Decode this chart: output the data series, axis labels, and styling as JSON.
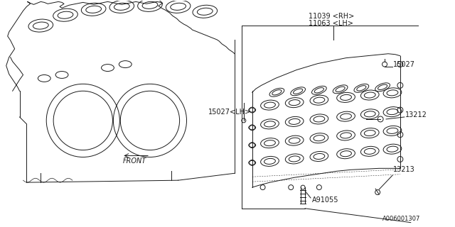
{
  "bg_color": "#ffffff",
  "line_color": "#1a1a1a",
  "lw": 0.7,
  "figsize": [
    6.4,
    3.2
  ],
  "dpi": 100,
  "texts": {
    "11039": "11039 <RH>",
    "11063": "11063 <LH>",
    "15027lh": "15027<LH>",
    "15027": "15027",
    "13212": "13212",
    "13213": "13213",
    "a91055": "A91055",
    "ref": "A006001307",
    "front": "FRONT"
  }
}
